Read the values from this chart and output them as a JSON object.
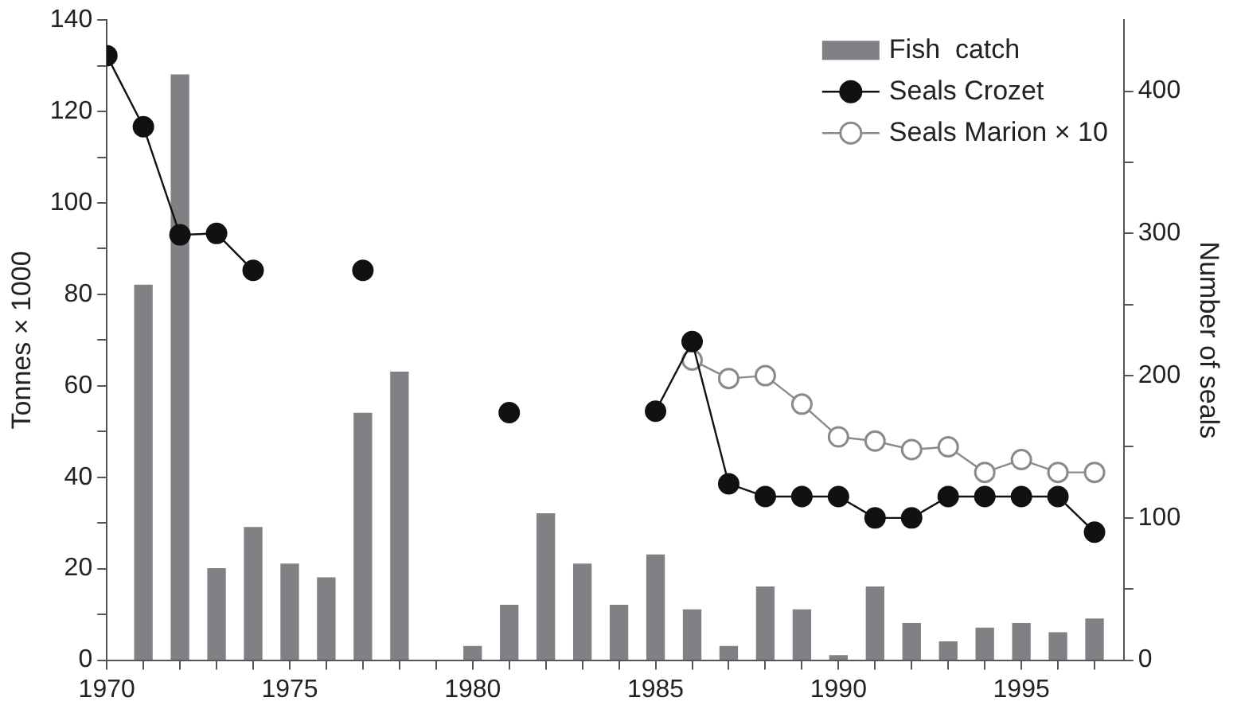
{
  "chart_data": {
    "type": "bar",
    "x": [
      1970,
      1971,
      1972,
      1973,
      1974,
      1975,
      1976,
      1977,
      1978,
      1979,
      1980,
      1981,
      1982,
      1983,
      1984,
      1985,
      1986,
      1987,
      1988,
      1989,
      1990,
      1991,
      1992,
      1993,
      1994,
      1995,
      1996,
      1997
    ],
    "series": [
      {
        "name": "Fish  catch",
        "color": "#808085",
        "values": [
          null,
          82,
          128,
          20,
          29,
          21,
          18,
          54,
          63,
          null,
          3,
          12,
          32,
          21,
          12,
          23,
          11,
          3,
          16,
          11,
          1,
          16,
          8,
          4,
          7,
          8,
          6,
          9
        ]
      },
      {
        "name": "Seals Crozet",
        "type": "line",
        "axis": "y2",
        "marker": "circle",
        "color": "#111111",
        "values": [
          425,
          375,
          299,
          300,
          274,
          null,
          null,
          274,
          null,
          null,
          null,
          174,
          null,
          null,
          null,
          175,
          224,
          124,
          115,
          115,
          115,
          100,
          100,
          115,
          115,
          115,
          115,
          90
        ]
      },
      {
        "name": "Seals Marion × 10",
        "type": "line",
        "axis": "y2",
        "marker": "circle",
        "color": "#8a8a8a",
        "values": [
          null,
          null,
          null,
          null,
          null,
          null,
          null,
          null,
          null,
          null,
          null,
          null,
          null,
          null,
          null,
          null,
          211,
          198,
          200,
          180,
          157,
          154,
          148,
          150,
          132,
          141,
          132,
          132
        ]
      }
    ],
    "xlim": [
      1970,
      1997.8
    ],
    "xticks": [
      1970,
      {
        "value": 1971,
        "label": null
      },
      {
        "value": 1972,
        "label": null
      },
      {
        "value": 1973,
        "label": null
      },
      {
        "value": 1974,
        "label": null
      },
      1975,
      {
        "value": 1976,
        "label": null
      },
      {
        "value": 1977,
        "label": null
      },
      {
        "value": 1978,
        "label": null
      },
      {
        "value": 1979,
        "label": null
      },
      1980,
      {
        "value": 1981,
        "label": null
      },
      {
        "value": 1982,
        "label": null
      },
      {
        "value": 1983,
        "label": null
      },
      {
        "value": 1984,
        "label": null
      },
      1985,
      {
        "value": 1986,
        "label": null
      },
      {
        "value": 1987,
        "label": null
      },
      {
        "value": 1988,
        "label": null
      },
      {
        "value": 1989,
        "label": null
      },
      1990,
      {
        "value": 1991,
        "label": null
      },
      {
        "value": 1992,
        "label": null
      },
      {
        "value": 1993,
        "label": null
      },
      {
        "value": 1994,
        "label": null
      },
      1995,
      {
        "value": 1996,
        "label": null
      },
      {
        "value": 1997,
        "label": null
      }
    ],
    "ylabel": "Tonnes × 1000",
    "ylim": [
      0,
      140
    ],
    "yticks": [
      0,
      {
        "value": 10,
        "label": null
      },
      20,
      {
        "value": 30,
        "label": null
      },
      40,
      {
        "value": 50,
        "label": null
      },
      60,
      {
        "value": 70,
        "label": null
      },
      80,
      {
        "value": 90,
        "label": null
      },
      100,
      {
        "value": 110,
        "label": null
      },
      120,
      {
        "value": 130,
        "label": null
      },
      140
    ],
    "y2label": "Number of seals",
    "y2lim": [
      0,
      450
    ],
    "y2ticks": [
      0,
      {
        "value": 50,
        "label": null
      },
      100,
      {
        "value": 150,
        "label": null
      },
      200,
      {
        "value": 250,
        "label": null
      },
      300,
      {
        "value": 350,
        "label": null
      },
      400
    ],
    "legend": "top right"
  }
}
